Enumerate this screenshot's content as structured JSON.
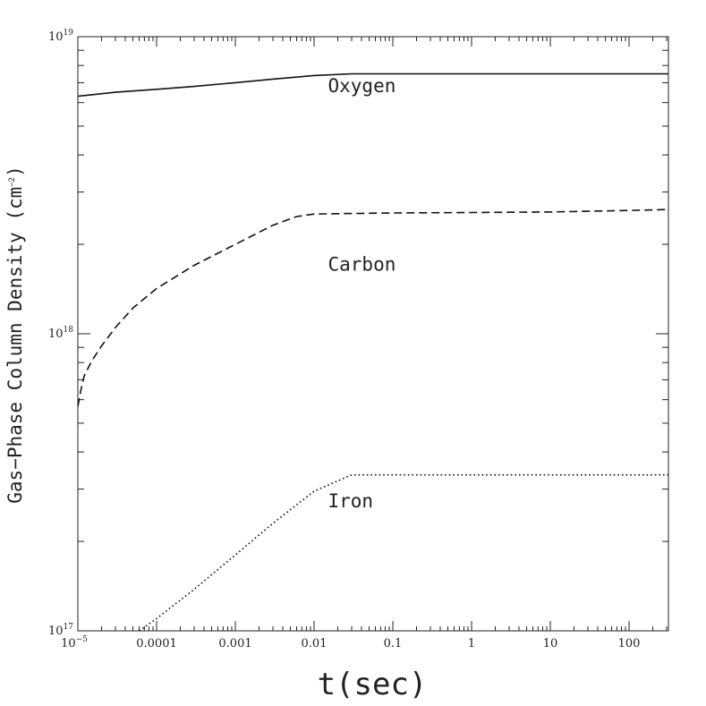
{
  "chart_data": {
    "type": "line",
    "title": "",
    "xlabel": "t(sec)",
    "ylabel": "Gas−Phase Column Density (cm",
    "ylabel_exp": "−2",
    "ylabel_close": ")",
    "x_scale": "log",
    "y_scale": "log",
    "xlim": [
      1e-05,
      316
    ],
    "ylim": [
      1e+17,
      1e+19
    ],
    "x_ticks": [
      {
        "value": 1e-05,
        "label": "10",
        "exp": "−5"
      },
      {
        "value": 0.0001,
        "label": "0.0001",
        "exp": ""
      },
      {
        "value": 0.001,
        "label": "0.001",
        "exp": ""
      },
      {
        "value": 0.01,
        "label": "0.01",
        "exp": ""
      },
      {
        "value": 0.1,
        "label": "0.1",
        "exp": ""
      },
      {
        "value": 1,
        "label": "1",
        "exp": ""
      },
      {
        "value": 10,
        "label": "10",
        "exp": ""
      },
      {
        "value": 100,
        "label": "100",
        "exp": ""
      }
    ],
    "y_ticks": [
      {
        "value": 1e+17,
        "label": "10",
        "exp": "17"
      },
      {
        "value": 1e+18,
        "label": "10",
        "exp": "18"
      },
      {
        "value": 1e+19,
        "label": "10",
        "exp": "19"
      }
    ],
    "grid": false,
    "legend": "none",
    "series": [
      {
        "name": "Oxygen",
        "style": "solid",
        "x": [
          1e-05,
          3e-05,
          0.0001,
          0.0003,
          0.001,
          0.003,
          0.01,
          0.03,
          0.1,
          1,
          10,
          100,
          316
        ],
        "y": [
          6.3e+18,
          6.5e+18,
          6.65e+18,
          6.8e+18,
          7e+18,
          7.2e+18,
          7.4e+18,
          7.5e+18,
          7.5e+18,
          7.5e+18,
          7.5e+18,
          7.5e+18,
          7.5e+18
        ]
      },
      {
        "name": "Carbon",
        "style": "dashed",
        "x": [
          1e-05,
          1.1e-05,
          1.2e-05,
          1.5e-05,
          2e-05,
          3e-05,
          5e-05,
          0.0001,
          0.0003,
          0.001,
          0.003,
          0.006,
          0.01,
          0.03,
          0.1,
          1,
          10,
          100,
          316
        ],
        "y": [
          5.7e+17,
          6.5e+17,
          7.2e+17,
          8.1e+17,
          9.1e+17,
          1.05e+18,
          1.22e+18,
          1.42e+18,
          1.7e+18,
          2e+18,
          2.32e+18,
          2.48e+18,
          2.53e+18,
          2.54e+18,
          2.55e+18,
          2.56e+18,
          2.57e+18,
          2.6e+18,
          2.62e+18
        ]
      },
      {
        "name": "Iron",
        "style": "dotted",
        "x": [
          6e-05,
          0.0001,
          0.0003,
          0.001,
          0.003,
          0.01,
          0.03,
          0.1,
          1,
          10,
          100,
          316
        ],
        "y": [
          1e+17,
          1.1e+17,
          1.38e+17,
          1.8e+17,
          2.3e+17,
          2.95e+17,
          3.35e+17,
          3.35e+17,
          3.35e+17,
          3.35e+17,
          3.35e+17,
          3.35e+17
        ]
      }
    ],
    "annotations": [
      {
        "text": "Oxygen",
        "x": 0.015,
        "y": 6.5e+18
      },
      {
        "text": "Carbon",
        "x": 0.015,
        "y": 1.63e+18
      },
      {
        "text": "Iron",
        "x": 0.015,
        "y": 2.6e+17
      }
    ]
  }
}
